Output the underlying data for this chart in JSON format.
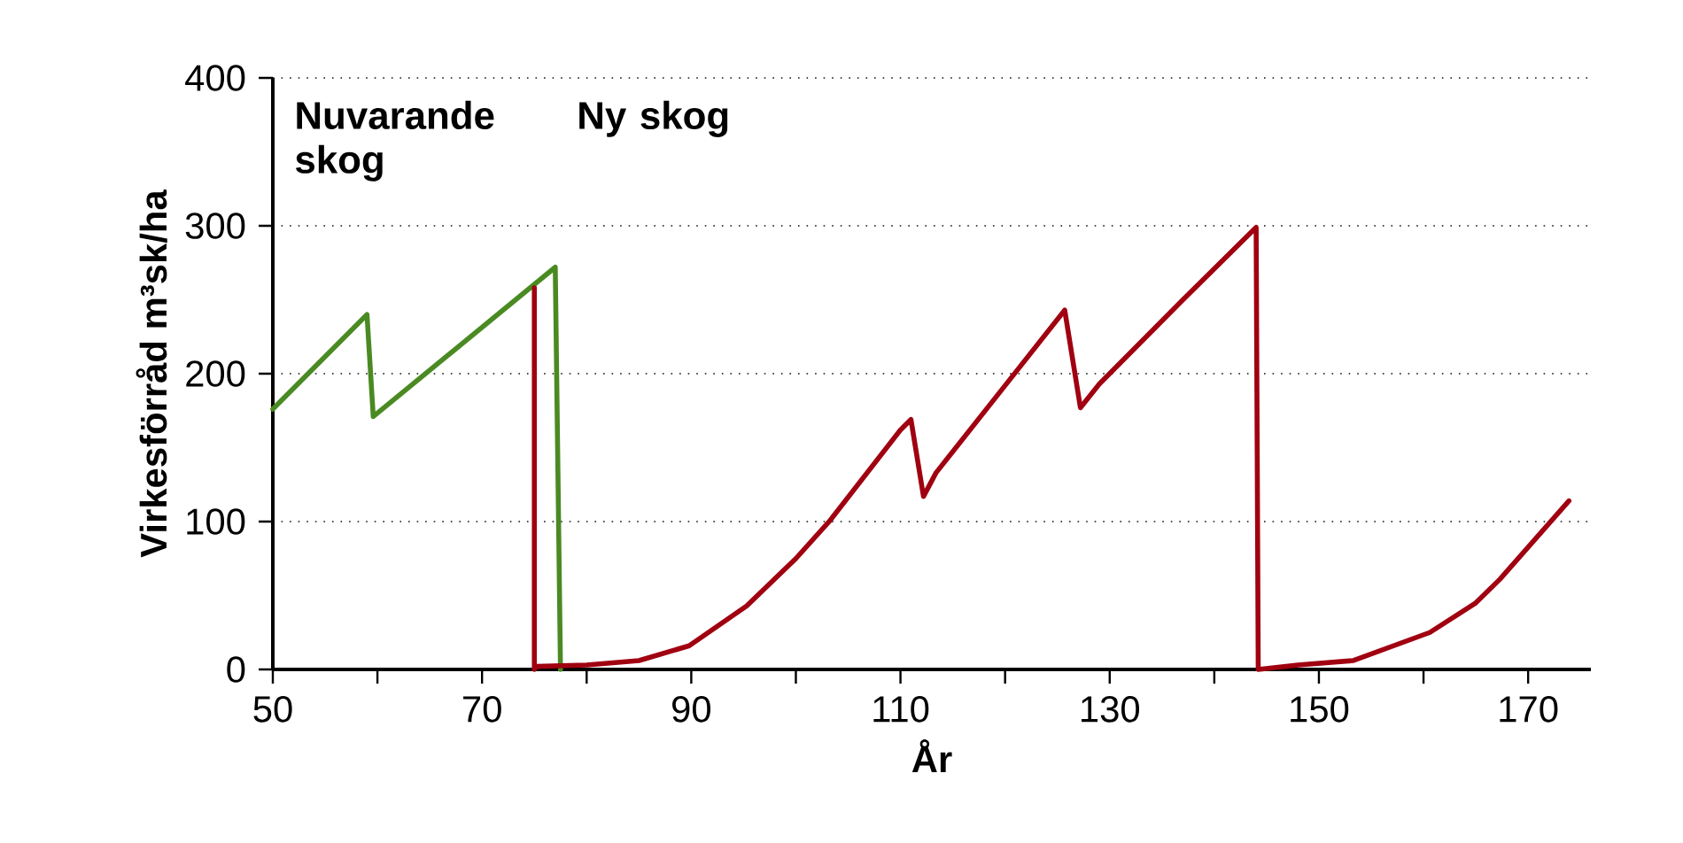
{
  "chart_data": {
    "type": "line",
    "xlabel": "År",
    "ylabel": "Virkesförråd m³sk/ha",
    "xlim": [
      50,
      176
    ],
    "ylim": [
      0,
      400
    ],
    "xticks": [
      50,
      {
        "value": 60,
        "label": null
      },
      70,
      {
        "value": 80,
        "label": null
      },
      90,
      {
        "value": 100,
        "label": null
      },
      110,
      {
        "value": 120,
        "label": null
      },
      130,
      {
        "value": 140,
        "label": null
      },
      150,
      {
        "value": 160,
        "label": null
      },
      170
    ],
    "yticks": [
      0,
      100,
      200,
      300,
      400
    ],
    "grid": "y",
    "marker": "none",
    "line_style": "solid",
    "annotations": [
      "Nuvarande skog",
      "Ny skog"
    ],
    "series": [
      {
        "color": "#4a8a22",
        "x": [
          50,
          59,
          59.6,
          77,
          77.5
        ],
        "values": [
          176,
          240,
          171,
          272,
          0
        ]
      },
      {
        "color": "#a00010",
        "x": [
          75,
          75,
          75.2,
          80,
          85,
          89.8,
          95.3,
          100,
          103.3,
          110,
          111,
          112.2,
          113.4,
          120,
          125.7,
          127.2,
          129,
          137,
          144,
          144.2,
          148,
          153.3,
          160.6,
          165,
          167.3,
          173.9
        ],
        "values": [
          258,
          0,
          2,
          3,
          6,
          16,
          43,
          75,
          101,
          162,
          169,
          117,
          133,
          192,
          243,
          177,
          193,
          250,
          299,
          0,
          3,
          6,
          25,
          45,
          61,
          114
        ]
      }
    ]
  }
}
